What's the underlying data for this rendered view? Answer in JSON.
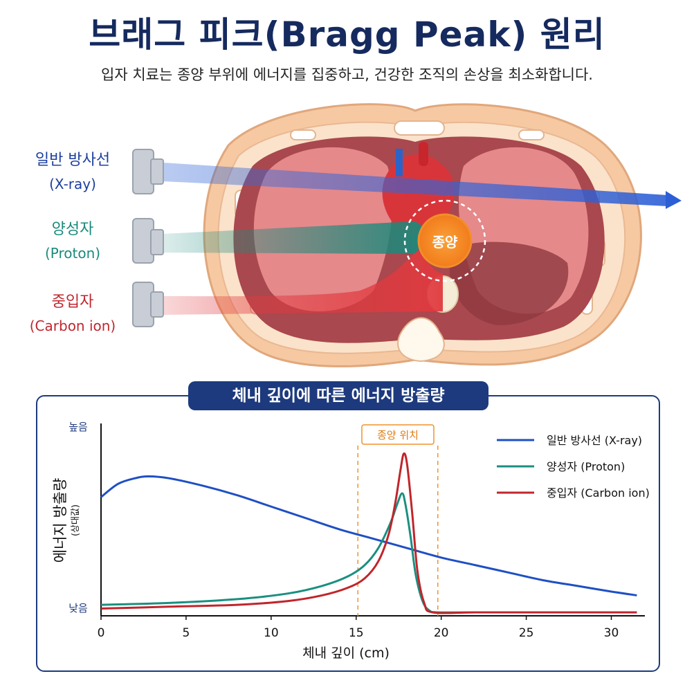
{
  "title": "브래그 피크(Bragg Peak) 원리",
  "subtitle": "입자 치료는 종양 부위에 에너지를 집중하고, 건강한 조직의 손상을 최소화합니다.",
  "illustration": {
    "beams": [
      {
        "name": "일반 방사선",
        "sub": "(X-ray)",
        "color": "#3563d6"
      },
      {
        "name": "양성자",
        "sub": "(Proton)",
        "color": "#1a8a7c"
      },
      {
        "name": "중입자",
        "sub": "(Carbon ion)",
        "color": "#d6333a"
      }
    ],
    "tumor_label": "종양"
  },
  "chart_data": {
    "type": "line",
    "title": "체내 깊이에 따른 에너지 방출량",
    "xlabel": "체내 깊이 (cm)",
    "ylabel": "에너지 방출량",
    "ylabel_sub": "(상대값)",
    "y_high_label": "높음",
    "y_low_label": "낮음",
    "xlim": [
      0,
      32
    ],
    "ylim": [
      0,
      1
    ],
    "xticks": [
      0,
      5,
      10,
      15,
      20,
      25,
      30
    ],
    "tumor_region": {
      "label": "종양 위치",
      "x_start": 15.1,
      "x_end": 19.8
    },
    "legend": "top-right",
    "series": [
      {
        "name": "일반 방사선 (X-ray)",
        "color": "#1f4fc4",
        "x": [
          0,
          1,
          2,
          2.8,
          4,
          6,
          8,
          10,
          12,
          14,
          16,
          18,
          20,
          22,
          24,
          26,
          28,
          30,
          31.5
        ],
        "y": [
          0.61,
          0.68,
          0.71,
          0.72,
          0.71,
          0.67,
          0.62,
          0.56,
          0.5,
          0.44,
          0.39,
          0.34,
          0.29,
          0.25,
          0.21,
          0.17,
          0.14,
          0.11,
          0.09
        ]
      },
      {
        "name": "양성자 (Proton)",
        "color": "#1a8f80",
        "x": [
          0,
          4,
          8,
          11,
          13,
          14.5,
          15.5,
          16.3,
          17,
          17.4,
          17.7,
          17.9,
          18.2,
          18.5,
          18.9,
          19.3,
          19.8,
          22,
          26,
          31.5
        ],
        "y": [
          0.04,
          0.05,
          0.07,
          0.1,
          0.14,
          0.19,
          0.25,
          0.34,
          0.47,
          0.57,
          0.63,
          0.57,
          0.4,
          0.2,
          0.06,
          0.01,
          0.0,
          0.0,
          0.0,
          0.0
        ]
      },
      {
        "name": "중입자 (Carbon ion)",
        "color": "#c0252b",
        "x": [
          0,
          4,
          8,
          11,
          13,
          14.5,
          15.5,
          16.3,
          16.9,
          17.3,
          17.6,
          17.8,
          18.0,
          18.3,
          18.6,
          19.0,
          19.5,
          22,
          26,
          31.5
        ],
        "y": [
          0.02,
          0.03,
          0.04,
          0.06,
          0.09,
          0.13,
          0.18,
          0.27,
          0.41,
          0.58,
          0.75,
          0.84,
          0.78,
          0.52,
          0.22,
          0.05,
          0.0,
          0.0,
          0.0,
          0.0
        ]
      }
    ]
  }
}
